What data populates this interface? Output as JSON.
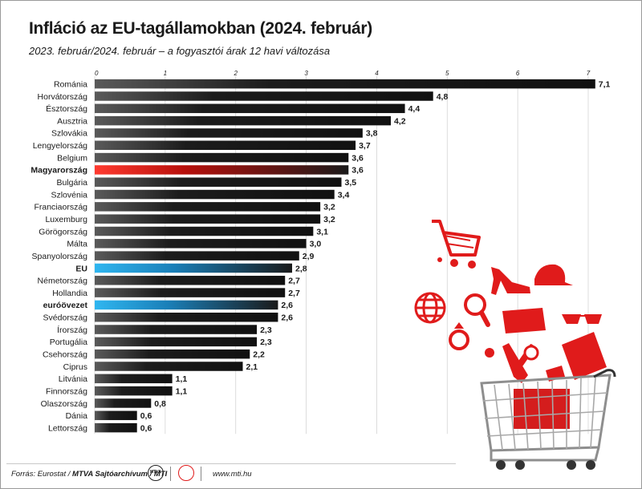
{
  "title": "Infláció az EU-tagállamokban (2024. február)",
  "subtitle": "2023. február/2024. február – a fogyasztói árak 12 havi változása",
  "footer": {
    "source_prefix": "Forrás: Eurostat / ",
    "source_bold": "MTVA Sajtóarchívum / MTI",
    "logo_text": "MTVA",
    "url": "www.mti.hu"
  },
  "colors": {
    "bar_default": "#1c1c1c",
    "bar_hungary": "#e2231a",
    "bar_eu": "#1f9bd7",
    "illustration": "#e01b1b"
  },
  "chart_data": {
    "type": "bar",
    "orientation": "horizontal",
    "xlim": [
      0,
      7
    ],
    "xticks": [
      0,
      1,
      2,
      3,
      4,
      5,
      6,
      7
    ],
    "grid": true,
    "categories": [
      "Románia",
      "Horvátország",
      "Észtország",
      "Ausztria",
      "Szlovákia",
      "Lengyelország",
      "Belgium",
      "Magyarország",
      "Bulgária",
      "Szlovénia",
      "Franciaország",
      "Luxemburg",
      "Görögország",
      "Málta",
      "Spanyolország",
      "EU",
      "Németország",
      "Hollandia",
      "euróövezet",
      "Svédország",
      "Írország",
      "Portugália",
      "Csehország",
      "Ciprus",
      "Litvánia",
      "Finnország",
      "Olaszország",
      "Dánia",
      "Lettország"
    ],
    "values": [
      7.1,
      4.8,
      4.4,
      4.2,
      3.8,
      3.7,
      3.6,
      3.6,
      3.5,
      3.4,
      3.2,
      3.2,
      3.1,
      3.0,
      2.9,
      2.8,
      2.7,
      2.7,
      2.6,
      2.6,
      2.3,
      2.3,
      2.2,
      2.1,
      1.1,
      1.1,
      0.8,
      0.6,
      0.6
    ],
    "value_labels": [
      "7,1",
      "4,8",
      "4,4",
      "4,2",
      "3,8",
      "3,7",
      "3,6",
      "3,6",
      "3,5",
      "3,4",
      "3,2",
      "3,2",
      "3,1",
      "3,0",
      "2,9",
      "2,8",
      "2,7",
      "2,7",
      "2,6",
      "2,6",
      "2,3",
      "2,3",
      "2,2",
      "2,1",
      "1,1",
      "1,1",
      "0,8",
      "0,6",
      "0,6"
    ],
    "highlight": {
      "Magyarország": "hungary",
      "EU": "eu",
      "euróövezet": "eu"
    },
    "bold_labels": [
      "Magyarország",
      "EU",
      "euróövezet"
    ]
  }
}
